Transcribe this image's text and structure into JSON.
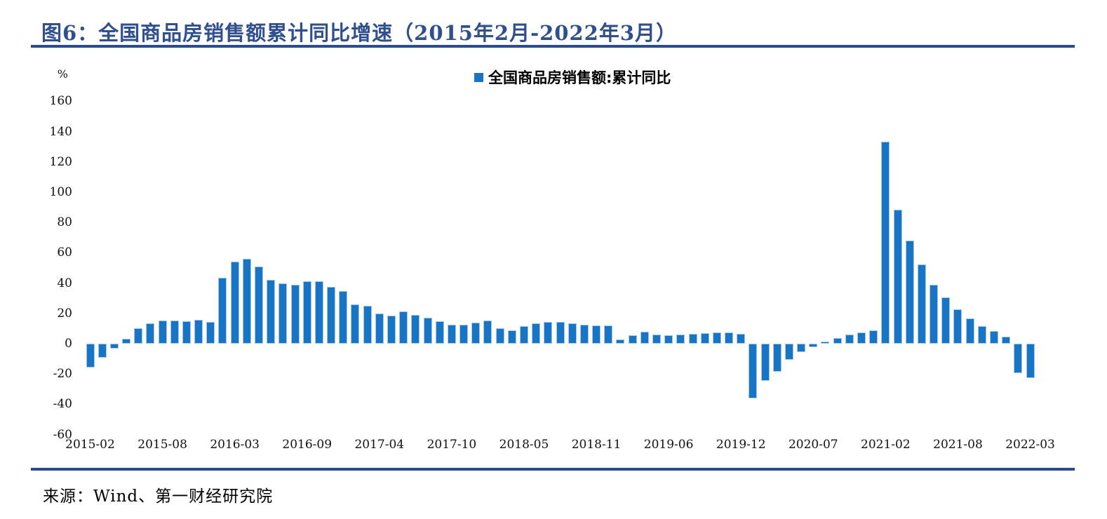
{
  "figure": {
    "title": "图6：全国商品房销售额累计同比增速（2015年2月-2022年3月）",
    "source": "来源：Wind、第一财经研究院"
  },
  "colors": {
    "bar": "#1874c5",
    "bar_edge": "#a6c8e8",
    "title_text": "#2f4f8f",
    "rule": "#2a4b8d",
    "axis_text": "#111111"
  },
  "chart_data": {
    "type": "bar",
    "legend": "全国商品房销售额:累计同比",
    "unit": "%",
    "legend_position": "top-center",
    "grid": false,
    "ylim": [
      -60,
      170
    ],
    "y_ticks": [
      160,
      140,
      120,
      100,
      80,
      60,
      40,
      20,
      0,
      -20,
      -40,
      -60
    ],
    "x_tick_every": 6,
    "x_tick_labels": [
      "2015-02",
      "2015-08",
      "2016-03",
      "2016-09",
      "2017-04",
      "2017-10",
      "2018-05",
      "2018-11",
      "2019-06",
      "2019-12",
      "2020-07",
      "2021-02",
      "2021-08",
      "2022-03"
    ],
    "x": [
      "2015-02",
      "2015-03",
      "2015-04",
      "2015-05",
      "2015-06",
      "2015-07",
      "2015-08",
      "2015-09",
      "2015-10",
      "2015-11",
      "2015-12",
      "2016-02",
      "2016-03",
      "2016-04",
      "2016-05",
      "2016-06",
      "2016-07",
      "2016-08",
      "2016-09",
      "2016-10",
      "2016-11",
      "2016-12",
      "2017-02",
      "2017-03",
      "2017-04",
      "2017-05",
      "2017-06",
      "2017-07",
      "2017-08",
      "2017-09",
      "2017-10",
      "2017-11",
      "2017-12",
      "2018-02",
      "2018-03",
      "2018-04",
      "2018-05",
      "2018-06",
      "2018-07",
      "2018-08",
      "2018-09",
      "2018-10",
      "2018-11",
      "2018-12",
      "2019-02",
      "2019-03",
      "2019-04",
      "2019-05",
      "2019-06",
      "2019-07",
      "2019-08",
      "2019-09",
      "2019-10",
      "2019-11",
      "2019-12",
      "2020-02",
      "2020-03",
      "2020-04",
      "2020-05",
      "2020-06",
      "2020-07",
      "2020-08",
      "2020-09",
      "2020-10",
      "2020-11",
      "2020-12",
      "2021-02",
      "2021-03",
      "2021-04",
      "2021-05",
      "2021-06",
      "2021-07",
      "2021-08",
      "2021-09",
      "2021-10",
      "2021-11",
      "2021-12",
      "2022-02",
      "2022-03"
    ],
    "values": [
      -15.8,
      -9.3,
      -3.1,
      3.1,
      10.0,
      13.4,
      15.3,
      15.3,
      14.9,
      15.6,
      14.4,
      43.6,
      54.1,
      55.9,
      50.7,
      42.1,
      39.8,
      38.7,
      41.3,
      41.2,
      37.5,
      34.8,
      26.0,
      25.1,
      20.1,
      18.6,
      21.5,
      18.9,
      17.2,
      14.6,
      12.6,
      12.7,
      13.7,
      15.3,
      10.4,
      9.0,
      11.8,
      13.2,
      14.4,
      14.5,
      13.3,
      12.5,
      12.1,
      12.2,
      2.8,
      5.6,
      8.1,
      6.1,
      5.6,
      6.2,
      6.7,
      7.1,
      7.3,
      7.3,
      6.5,
      -35.9,
      -24.7,
      -18.6,
      -10.6,
      -5.4,
      -2.1,
      1.6,
      3.8,
      5.8,
      7.2,
      8.7,
      133.4,
      88.5,
      68.2,
      52.4,
      38.9,
      30.7,
      22.8,
      16.6,
      11.8,
      8.5,
      4.8,
      -19.3,
      -22.7
    ]
  }
}
